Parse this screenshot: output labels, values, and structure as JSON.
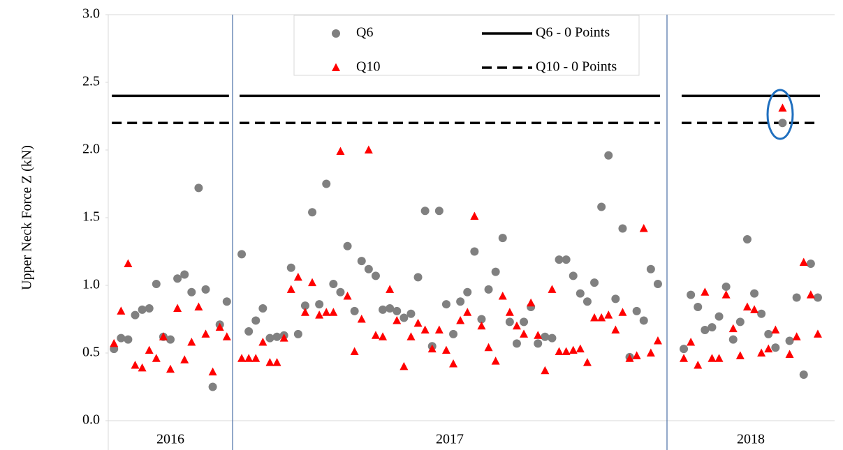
{
  "chart_data": {
    "type": "scatter",
    "y_label": "Upper Neck Force Z (kN)",
    "categories": [
      "2016",
      "2017",
      "2018"
    ],
    "ylim": [
      0,
      3
    ],
    "yticks": [
      {
        "value": 0,
        "label": "0.0"
      },
      0.5,
      {
        "value": 1,
        "label": "1.0"
      },
      1.5,
      {
        "value": 2,
        "label": "2.0"
      },
      2.5,
      {
        "value": 3,
        "label": "3.0"
      }
    ],
    "series": [
      {
        "name": "Q6",
        "color": "#808080",
        "marker": "circle",
        "values": [
          [
            0.53,
            0.61,
            0.6,
            0.78,
            0.82,
            0.83,
            1.01,
            0.62,
            0.6,
            1.05,
            1.08,
            0.95,
            1.72,
            0.97,
            0.25,
            0.71,
            0.88
          ],
          [
            1.23,
            0.66,
            0.74,
            0.83,
            0.61,
            0.62,
            0.63,
            1.13,
            0.64,
            0.85,
            1.54,
            0.86,
            1.75,
            1.01,
            0.95,
            1.29,
            0.81,
            1.18,
            1.12,
            1.07,
            0.82,
            0.83,
            0.81,
            0.76,
            0.79,
            1.06,
            1.55,
            0.55,
            1.55,
            0.86,
            0.64,
            0.88,
            0.95,
            1.25,
            0.75,
            0.97,
            1.1,
            1.35,
            0.73,
            0.57,
            0.73,
            0.84,
            0.57,
            0.62,
            0.61,
            1.19,
            1.19,
            1.07,
            0.94,
            0.88,
            1.02,
            1.58,
            1.96,
            0.9,
            1.42,
            0.47,
            0.81,
            0.74,
            1.12,
            1.01
          ],
          [
            0.53,
            0.93,
            0.84,
            0.67,
            0.69,
            0.77,
            0.99,
            0.6,
            0.73,
            1.34,
            0.94,
            0.79,
            0.64,
            0.54,
            2.2,
            0.59,
            0.91,
            0.34,
            1.16,
            0.91
          ]
        ]
      },
      {
        "name": "Q10",
        "color": "#ff0000",
        "marker": "triangle",
        "values": [
          [
            0.57,
            0.81,
            1.16,
            0.41,
            0.39,
            0.52,
            0.46,
            0.62,
            0.38,
            0.83,
            0.45,
            0.58,
            0.84,
            0.64,
            0.36,
            0.69,
            0.62
          ],
          [
            0.46,
            0.46,
            0.46,
            0.58,
            0.43,
            0.43,
            0.61,
            0.97,
            1.06,
            0.8,
            1.02,
            0.78,
            0.8,
            0.8,
            1.99,
            0.92,
            0.51,
            0.75,
            2.0,
            0.63,
            0.62,
            0.97,
            0.74,
            0.4,
            0.62,
            0.72,
            0.67,
            0.53,
            0.67,
            0.52,
            0.42,
            0.74,
            0.8,
            1.51,
            0.7,
            0.54,
            0.44,
            0.92,
            0.8,
            0.7,
            0.64,
            0.87,
            0.63,
            0.37,
            0.97,
            0.51,
            0.51,
            0.52,
            0.53,
            0.43,
            0.76,
            0.76,
            0.78,
            0.67,
            0.8,
            0.46,
            0.48,
            1.42,
            0.5,
            0.59
          ],
          [
            0.46,
            0.58,
            0.41,
            0.95,
            0.46,
            0.46,
            0.93,
            0.68,
            0.48,
            0.84,
            0.82,
            0.5,
            0.53,
            0.67,
            2.31,
            0.49,
            0.62,
            1.17,
            0.93,
            0.64
          ]
        ]
      }
    ],
    "reference_lines": [
      {
        "name": "Q6 - 0 Points",
        "value": 2.4,
        "color": "#000000",
        "dashed": false
      },
      {
        "name": "Q10 - 0 Points",
        "value": 2.2,
        "color": "#000000",
        "dashed": true
      }
    ]
  }
}
